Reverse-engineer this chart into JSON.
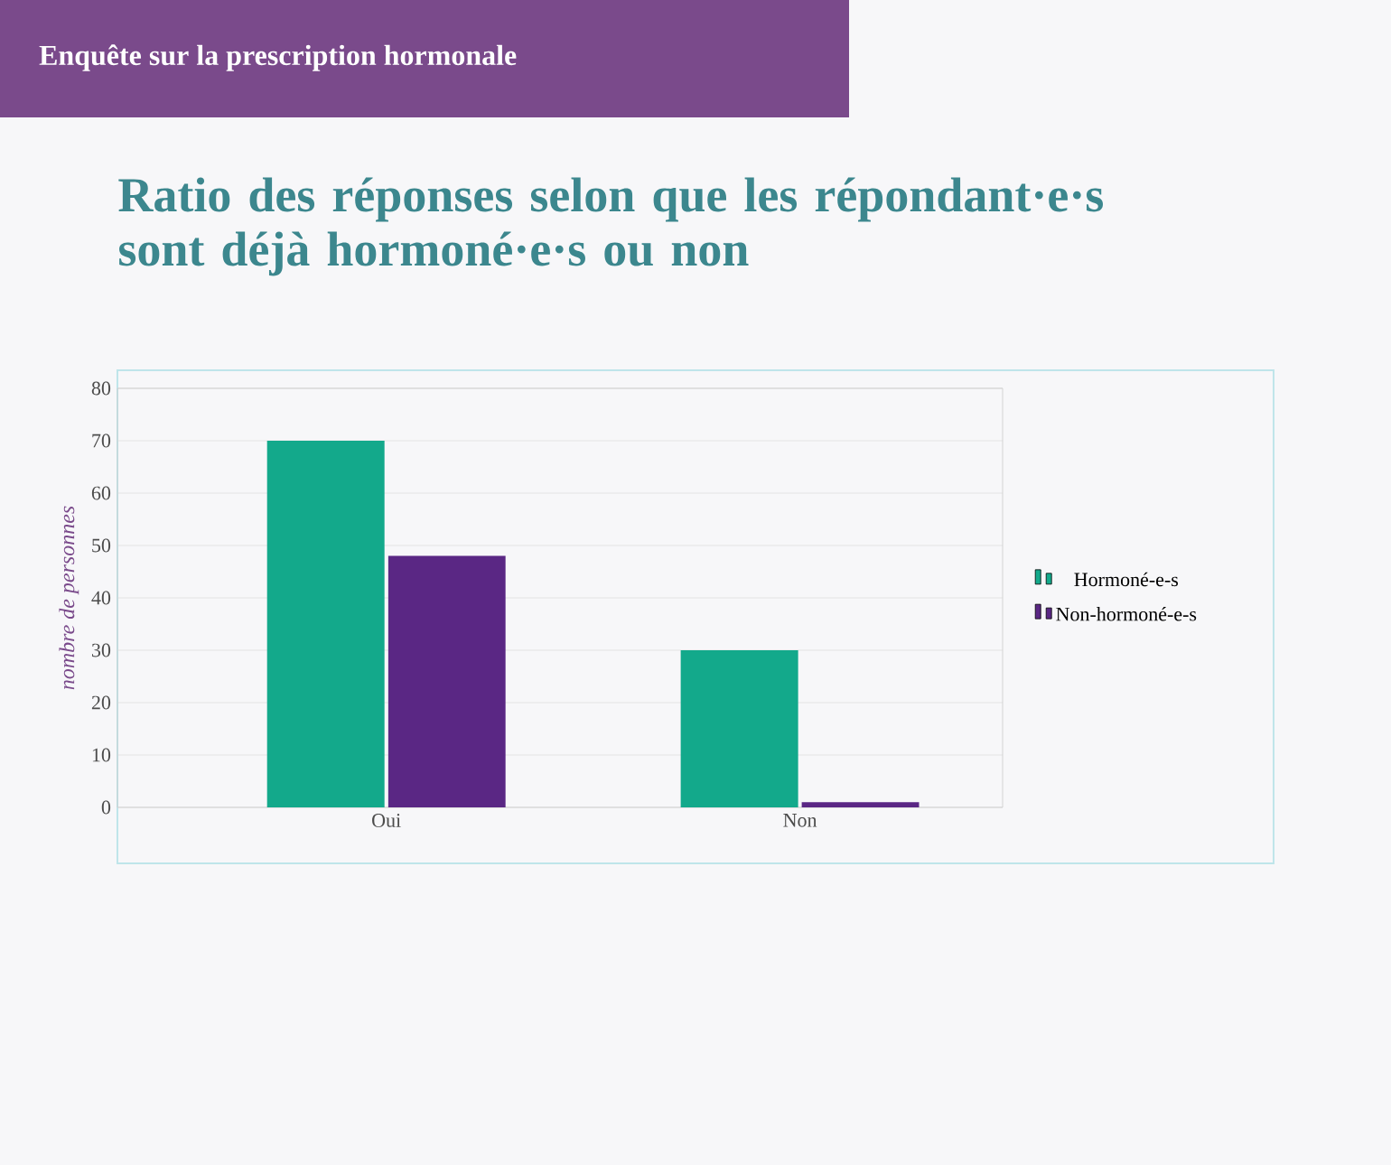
{
  "chart_data": {
    "type": "bar",
    "title": "Ratio des réponses selon que les répondant·e·s sont déjà hormoné·e·s ou non",
    "annotations": [
      "Enquête sur la prescription hormonale"
    ],
    "ylabel": "nombre de personnes",
    "categories": [
      "Oui",
      "Non"
    ],
    "series": [
      {
        "name": "Hormoné-e-s",
        "color": "#13a98b",
        "values": [
          70,
          30
        ]
      },
      {
        "name": "Non-hormoné-e-s",
        "color": "#5a2784",
        "values": [
          48,
          1
        ]
      }
    ],
    "ylim": [
      0,
      80
    ],
    "yticks": [
      0,
      10,
      20,
      30,
      40,
      50,
      60,
      70,
      80
    ],
    "grid": "y",
    "legend": "right"
  }
}
